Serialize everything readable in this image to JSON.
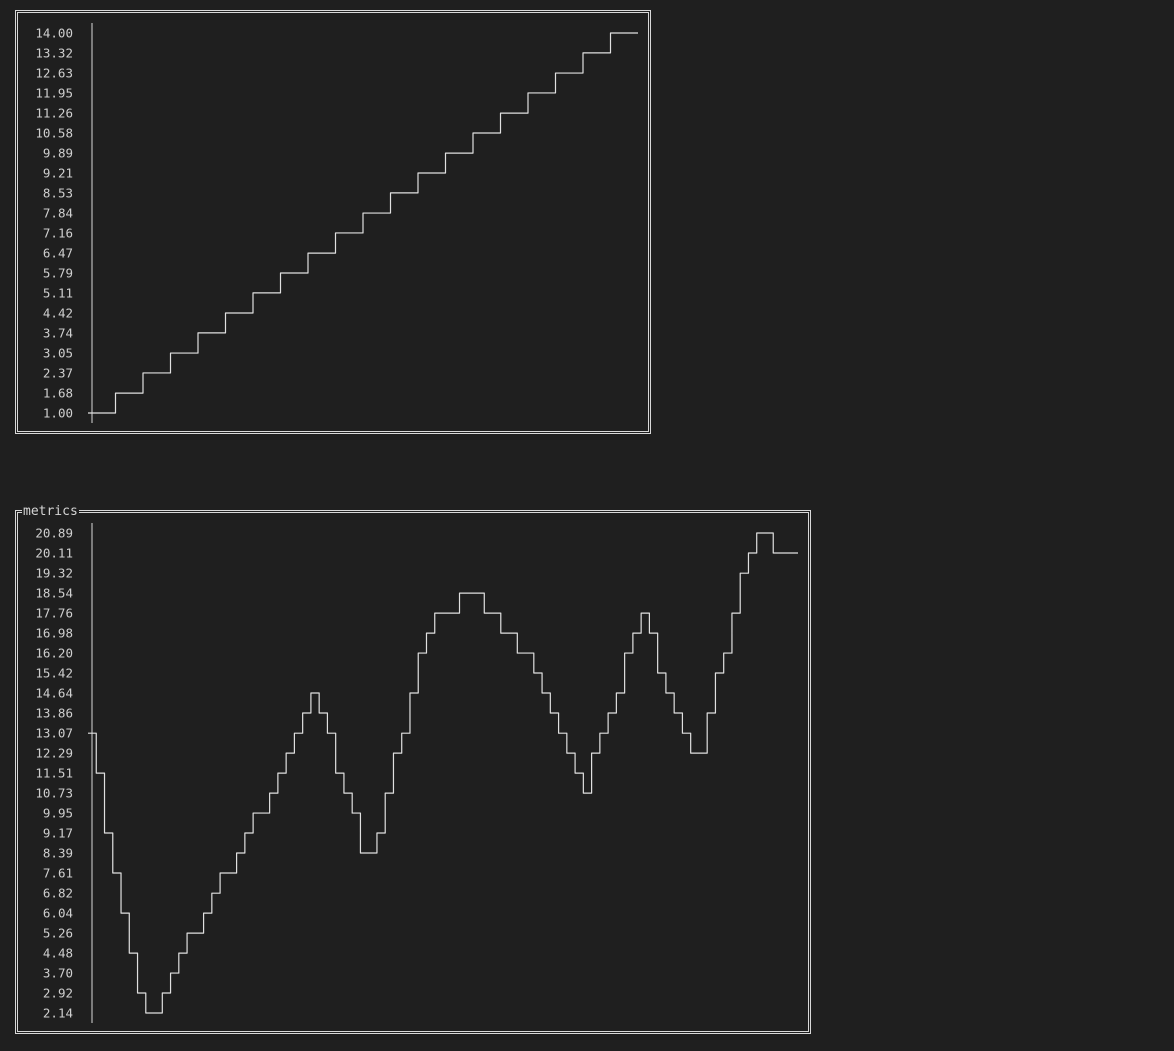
{
  "charts": [
    {
      "title": "",
      "chart_data": {
        "type": "line",
        "step": true,
        "ticks": [
          "14.00",
          "13.32",
          "12.63",
          "11.95",
          "11.26",
          "10.58",
          "9.89",
          "9.21",
          "8.53",
          "7.84",
          "7.16",
          "6.47",
          "5.79",
          "5.11",
          "4.42",
          "3.74",
          "3.05",
          "2.37",
          "1.68",
          "1.00"
        ],
        "ylim": [
          1.0,
          14.0
        ],
        "x": [
          0,
          1,
          2,
          3,
          4,
          5,
          6,
          7,
          8,
          9,
          10,
          11,
          12,
          13,
          14,
          15,
          16,
          17,
          18,
          19
        ],
        "values": [
          1.0,
          1.68,
          2.37,
          3.05,
          3.74,
          4.42,
          5.11,
          5.79,
          6.47,
          7.16,
          7.84,
          8.53,
          9.21,
          9.89,
          10.58,
          11.26,
          11.95,
          12.63,
          13.32,
          14.0
        ],
        "line_color": "#e0e0e0"
      }
    },
    {
      "title": "metrics",
      "chart_data": {
        "type": "line",
        "step": true,
        "ticks": [
          "20.89",
          "20.11",
          "19.32",
          "18.54",
          "17.76",
          "16.98",
          "16.20",
          "15.42",
          "14.64",
          "13.86",
          "13.07",
          "12.29",
          "11.51",
          "10.73",
          "9.95",
          "9.17",
          "8.39",
          "7.61",
          "6.82",
          "6.04",
          "5.26",
          "4.48",
          "3.70",
          "2.92",
          "2.14"
        ],
        "ylim": [
          2.14,
          20.89
        ],
        "x": [
          0,
          1,
          2,
          3,
          4,
          5,
          6,
          7,
          8,
          9,
          10,
          11,
          12,
          13,
          14,
          15,
          16,
          17,
          18,
          19,
          20,
          21,
          22,
          23,
          24,
          25,
          26,
          27,
          28,
          29,
          30,
          31,
          32,
          33,
          34,
          35,
          36,
          37,
          38,
          39,
          40,
          41,
          42,
          43,
          44,
          45,
          46,
          47,
          48,
          49,
          50,
          51,
          52,
          53,
          54,
          55,
          56,
          57,
          58,
          59,
          60,
          61,
          62,
          63,
          64,
          65,
          66,
          67,
          68,
          69,
          70,
          71,
          72,
          73,
          74,
          75,
          76,
          77,
          78,
          79,
          80,
          81,
          82,
          83,
          84,
          85
        ],
        "values": [
          13.07,
          11.51,
          9.17,
          7.61,
          6.04,
          4.48,
          2.92,
          2.14,
          2.14,
          2.92,
          3.7,
          4.48,
          5.26,
          5.26,
          6.04,
          6.82,
          7.61,
          7.61,
          8.39,
          9.17,
          9.95,
          9.95,
          10.73,
          11.51,
          12.29,
          13.07,
          13.86,
          14.64,
          13.86,
          13.07,
          11.51,
          10.73,
          9.95,
          8.39,
          8.39,
          9.17,
          10.73,
          12.29,
          13.07,
          14.64,
          16.2,
          16.98,
          17.76,
          17.76,
          17.76,
          18.54,
          18.54,
          18.54,
          17.76,
          17.76,
          16.98,
          16.98,
          16.2,
          16.2,
          15.42,
          14.64,
          13.86,
          13.07,
          12.29,
          11.51,
          10.73,
          12.29,
          13.07,
          13.86,
          14.64,
          16.2,
          16.98,
          17.76,
          16.98,
          15.42,
          14.64,
          13.86,
          13.07,
          12.29,
          12.29,
          13.86,
          15.42,
          16.2,
          17.76,
          19.32,
          20.11,
          20.89,
          20.89,
          20.11,
          20.11,
          20.11
        ],
        "line_color": "#e0e0e0"
      }
    }
  ]
}
